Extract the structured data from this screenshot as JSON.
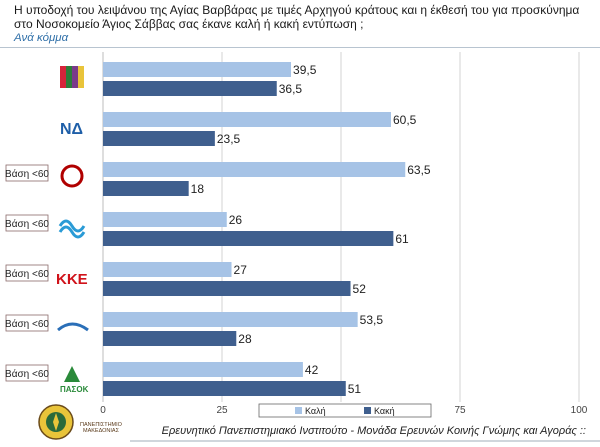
{
  "title": "Η υποδοχή του λειψάνου της Αγίας Βαρβάρας με τιμές Αρχηγού κράτους και η έκθεσή του για προσκύνημα στο Νοσοκομείο Άγιος Σάββας σας έκανε καλή ή κακή εντύπωση ;",
  "subtitle": "Ανά κόμμα",
  "footer": "Ερευνητικό Πανεπιστημιακό Ινστιτούτο - Μονάδα Ερευνών Κοινής Γνώμης και Αγοράς ::",
  "university_logo_text": "ΠΑΝΕΠΙΣΤΗΜΙΟ ΜΑΚΕΔΟΝΙΑΣ",
  "colors": {
    "kali": "#a6c3e6",
    "kaki": "#3f5f8e",
    "grid": "#c8c8c8",
    "axis": "#888888"
  },
  "chart_data": {
    "type": "bar",
    "orientation": "horizontal",
    "xlim": [
      0,
      100
    ],
    "xticks": [
      0,
      25,
      50,
      75,
      100
    ],
    "series": [
      {
        "name": "Καλή",
        "color": "#a6c3e6"
      },
      {
        "name": "Κακή",
        "color": "#3f5f8e"
      }
    ],
    "groups": [
      {
        "party": "ΣΥΡΙΖΑ",
        "logo": "syriza-logo",
        "base_note": "",
        "values": [
          39.5,
          36.5
        ],
        "labels": [
          "39,5",
          "36,5"
        ]
      },
      {
        "party": "ΝΔ",
        "logo": "nd-logo",
        "base_note": "",
        "values": [
          60.5,
          23.5
        ],
        "labels": [
          "60,5",
          "23,5"
        ]
      },
      {
        "party": "ΧΑ",
        "logo": "xa-logo",
        "base_note": "Βάση <60",
        "values": [
          63.5,
          18
        ],
        "labels": [
          "63,5",
          "18"
        ]
      },
      {
        "party": "ΤΟ ΠΟΤΑΜΙ",
        "logo": "potami-logo",
        "base_note": "Βάση <60",
        "values": [
          26,
          61
        ],
        "labels": [
          "26",
          "61"
        ]
      },
      {
        "party": "ΚΚΕ",
        "logo": "kke-logo",
        "base_note": "Βάση <60",
        "values": [
          27,
          52
        ],
        "labels": [
          "27",
          "52"
        ]
      },
      {
        "party": "ΑΝΕΛ",
        "logo": "anel-logo",
        "base_note": "Βάση <60",
        "values": [
          53.5,
          28
        ],
        "labels": [
          "53,5",
          "28"
        ]
      },
      {
        "party": "ΠΑΣΟΚ",
        "logo": "pasok-logo",
        "base_note": "Βάση <60",
        "values": [
          42,
          51
        ],
        "labels": [
          "42",
          "51"
        ]
      }
    ],
    "legend": {
      "placement": "bottom-center",
      "entries": [
        "Καλή",
        "Κακή"
      ]
    }
  }
}
